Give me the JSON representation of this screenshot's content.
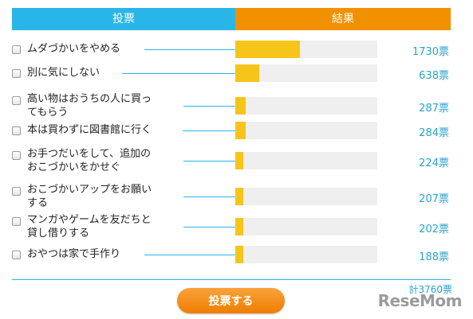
{
  "header": {
    "vote_label": "投票",
    "result_label": "結果"
  },
  "colors": {
    "vote_header": "#29b5e8",
    "result_header": "#f29100",
    "bar_fill": "#f7c519",
    "bar_track": "#efefef",
    "count_text": "#29a3d1"
  },
  "options": [
    {
      "lines": [
        "ムダづかいをやめる"
      ],
      "count_label": "1730票",
      "votes": 1730
    },
    {
      "lines": [
        "別に気にしない"
      ],
      "count_label": "638票",
      "votes": 638
    },
    {
      "lines": [
        "高い物はおうちの人に買っ",
        "てもらう"
      ],
      "count_label": "287票",
      "votes": 287
    },
    {
      "lines": [
        "本は買わずに図書館に行く"
      ],
      "count_label": "284票",
      "votes": 284
    },
    {
      "lines": [
        "お手つだいをして、追加の",
        "おこづかいをかせぐ"
      ],
      "count_label": "224票",
      "votes": 224
    },
    {
      "lines": [
        "おこづかいアップをお願い",
        "する"
      ],
      "count_label": "207票",
      "votes": 207
    },
    {
      "lines": [
        "マンガやゲームを友だちと",
        "貸し借りする"
      ],
      "count_label": "202票",
      "votes": 202
    },
    {
      "lines": [
        "おやつは家で手作り"
      ],
      "count_label": "188票",
      "votes": 188
    }
  ],
  "total_label": "計3760票",
  "vote_button_label": "投票する",
  "watermark": "ReseMom"
}
